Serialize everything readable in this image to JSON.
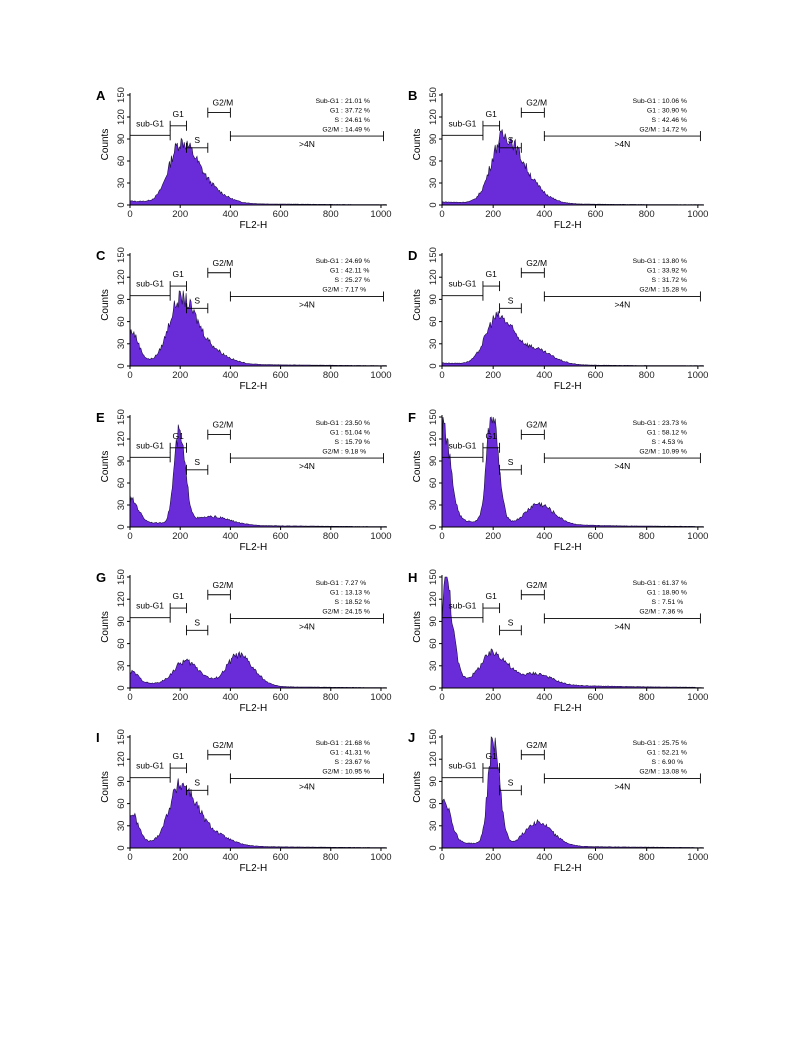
{
  "figure": {
    "domain_axes": {
      "xlabel": "FL2-H",
      "ylabel": "Counts"
    }
  },
  "chart_data": [
    {
      "panel": "A",
      "type": "area",
      "xlabel": "FL2-H",
      "ylabel": "Counts",
      "xlim": [
        0,
        1024
      ],
      "ylim": [
        0,
        150
      ],
      "xticks": [
        0,
        200,
        400,
        600,
        800,
        1000
      ],
      "yticks": [
        0,
        30,
        60,
        90,
        120,
        150
      ],
      "peaks": [
        {
          "x": 200,
          "y": 75
        }
      ],
      "trough_y": 7,
      "shoulder": [
        {
          "x": 300,
          "y": 22
        }
      ],
      "stats": [
        {
          "label": "Sub-G1",
          "value": "21.01 %"
        },
        {
          "label": "G1",
          "value": "37.72 %"
        },
        {
          "label": "S",
          "value": "24.61 %"
        },
        {
          "label": "G2/M",
          "value": "14.49 %"
        }
      ]
    },
    {
      "panel": "B",
      "type": "area",
      "xlabel": "FL2-H",
      "ylabel": "Counts",
      "xlim": [
        0,
        1024
      ],
      "ylim": [
        0,
        150
      ],
      "xticks": [
        0,
        200,
        400,
        600,
        800,
        1000
      ],
      "yticks": [
        0,
        30,
        60,
        90,
        120,
        150
      ],
      "peaks": [
        {
          "x": 235,
          "y": 78
        }
      ],
      "trough_y": 5,
      "shoulder": [
        {
          "x": 320,
          "y": 30
        }
      ],
      "stats": [
        {
          "label": "Sub-G1",
          "value": "10.06 %"
        },
        {
          "label": "G1",
          "value": "30.90 %"
        },
        {
          "label": "S",
          "value": "42.46 %"
        },
        {
          "label": "G2/M",
          "value": "14.72 %"
        }
      ]
    },
    {
      "panel": "C",
      "type": "area",
      "xlabel": "FL2-H",
      "ylabel": "Counts",
      "xlim": [
        0,
        1024
      ],
      "ylim": [
        0,
        150
      ],
      "xticks": [
        0,
        200,
        400,
        600,
        800,
        1000
      ],
      "yticks": [
        0,
        30,
        60,
        90,
        120,
        150
      ],
      "peaks": [
        {
          "x": 5,
          "y": 40
        },
        {
          "x": 200,
          "y": 82
        }
      ],
      "trough_y": 10,
      "shoulder": [
        {
          "x": 310,
          "y": 20
        }
      ],
      "stats": [
        {
          "label": "Sub-G1",
          "value": "24.69 %"
        },
        {
          "label": "G1",
          "value": "42.11 %"
        },
        {
          "label": "S",
          "value": "25.27 %"
        },
        {
          "label": "G2/M",
          "value": "7.17 %"
        }
      ]
    },
    {
      "panel": "D",
      "type": "area",
      "xlabel": "FL2-H",
      "ylabel": "Counts",
      "xlim": [
        0,
        1024
      ],
      "ylim": [
        0,
        150
      ],
      "xticks": [
        0,
        200,
        400,
        600,
        800,
        1000
      ],
      "yticks": [
        0,
        30,
        60,
        90,
        120,
        150
      ],
      "peaks": [
        {
          "x": 215,
          "y": 62
        }
      ],
      "trough_y": 5,
      "shoulder": [
        {
          "x": 360,
          "y": 22
        }
      ],
      "stats": [
        {
          "label": "Sub-G1",
          "value": "13.80 %"
        },
        {
          "label": "G1",
          "value": "33.92 %"
        },
        {
          "label": "S",
          "value": "31.72 %"
        },
        {
          "label": "G2/M",
          "value": "15.28 %"
        }
      ]
    },
    {
      "panel": "E",
      "type": "area",
      "xlabel": "FL2-H",
      "ylabel": "Counts",
      "xlim": [
        0,
        1024
      ],
      "ylim": [
        0,
        150
      ],
      "xticks": [
        0,
        200,
        400,
        600,
        800,
        1000
      ],
      "yticks": [
        0,
        30,
        60,
        90,
        120,
        150
      ],
      "peaks": [
        {
          "x": 5,
          "y": 30
        },
        {
          "x": 195,
          "y": 120
        }
      ],
      "trough_y": 10,
      "shoulder": [
        {
          "x": 330,
          "y": 12
        }
      ],
      "stats": [
        {
          "label": "Sub-G1",
          "value": "23.50 %"
        },
        {
          "label": "G1",
          "value": "51.04 %"
        },
        {
          "label": "S",
          "value": "15.79 %"
        },
        {
          "label": "G2/M",
          "value": "9.18 %"
        }
      ]
    },
    {
      "panel": "F",
      "type": "area",
      "xlabel": "FL2-H",
      "ylabel": "Counts",
      "xlim": [
        0,
        1024
      ],
      "ylim": [
        0,
        150
      ],
      "xticks": [
        0,
        200,
        400,
        600,
        800,
        1000
      ],
      "yticks": [
        0,
        30,
        60,
        90,
        120,
        150
      ],
      "peaks": [
        {
          "x": 5,
          "y": 125
        },
        {
          "x": 195,
          "y": 150
        },
        {
          "x": 375,
          "y": 28
        }
      ],
      "trough_y": 15,
      "stats": [
        {
          "label": "Sub-G1",
          "value": "23.73 %"
        },
        {
          "label": "G1",
          "value": "58.12 %"
        },
        {
          "label": "S",
          "value": "4.53 %"
        },
        {
          "label": "G2/M",
          "value": "10.99 %"
        }
      ]
    },
    {
      "panel": "G",
      "type": "area",
      "xlabel": "FL2-H",
      "ylabel": "Counts",
      "xlim": [
        0,
        1024
      ],
      "ylim": [
        0,
        150
      ],
      "xticks": [
        0,
        200,
        400,
        600,
        800,
        1000
      ],
      "yticks": [
        0,
        30,
        60,
        90,
        120,
        150
      ],
      "peaks": [
        {
          "x": 5,
          "y": 15
        },
        {
          "x": 220,
          "y": 32
        },
        {
          "x": 430,
          "y": 42
        }
      ],
      "trough_y": 10,
      "stats": [
        {
          "label": "Sub-G1",
          "value": "7.27 %"
        },
        {
          "label": "G1",
          "value": "13.13 %"
        },
        {
          "label": "S",
          "value": "18.52 %"
        },
        {
          "label": "G2/M",
          "value": "24.15 %"
        }
      ]
    },
    {
      "panel": "H",
      "type": "area",
      "xlabel": "FL2-H",
      "ylabel": "Counts",
      "xlim": [
        0,
        1024
      ],
      "ylim": [
        0,
        150
      ],
      "xticks": [
        0,
        200,
        400,
        600,
        800,
        1000
      ],
      "yticks": [
        0,
        30,
        60,
        90,
        120,
        150
      ],
      "peaks": [
        {
          "x": 10,
          "y": 148
        },
        {
          "x": 200,
          "y": 40
        },
        {
          "x": 370,
          "y": 14
        }
      ],
      "trough_y": 20,
      "stats": [
        {
          "label": "Sub-G1",
          "value": "61.37 %"
        },
        {
          "label": "G1",
          "value": "18.90 %"
        },
        {
          "label": "S",
          "value": "7.51 %"
        },
        {
          "label": "G2/M",
          "value": "7.36 %"
        }
      ]
    },
    {
      "panel": "I",
      "type": "area",
      "xlabel": "FL2-H",
      "ylabel": "Counts",
      "xlim": [
        0,
        1024
      ],
      "ylim": [
        0,
        150
      ],
      "xticks": [
        0,
        200,
        400,
        600,
        800,
        1000
      ],
      "yticks": [
        0,
        30,
        60,
        90,
        120,
        150
      ],
      "peaks": [
        {
          "x": 5,
          "y": 40
        },
        {
          "x": 200,
          "y": 78
        }
      ],
      "trough_y": 10,
      "shoulder": [
        {
          "x": 320,
          "y": 18
        }
      ],
      "stats": [
        {
          "label": "Sub-G1",
          "value": "21.68 %"
        },
        {
          "label": "G1",
          "value": "41.31 %"
        },
        {
          "label": "S",
          "value": "23.67 %"
        },
        {
          "label": "G2/M",
          "value": "10.95 %"
        }
      ]
    },
    {
      "panel": "J",
      "type": "area",
      "xlabel": "FL2-H",
      "ylabel": "Counts",
      "xlim": [
        0,
        1024
      ],
      "ylim": [
        0,
        150
      ],
      "xticks": [
        0,
        200,
        400,
        600,
        800,
        1000
      ],
      "yticks": [
        0,
        30,
        60,
        90,
        120,
        150
      ],
      "peaks": [
        {
          "x": 5,
          "y": 60
        },
        {
          "x": 200,
          "y": 142
        },
        {
          "x": 370,
          "y": 32
        }
      ],
      "trough_y": 12,
      "stats": [
        {
          "label": "Sub-G1",
          "value": "25.75 %"
        },
        {
          "label": "G1",
          "value": "52.21 %"
        },
        {
          "label": "S",
          "value": "6.90 %"
        },
        {
          "label": "G2/M",
          "value": "13.08 %"
        }
      ]
    }
  ],
  "gates": {
    "sub_g1": "sub-G1",
    "g1": "G1",
    "s": "S",
    "g2m": "G2/M",
    "gt4n": ">4N"
  },
  "style": {
    "fill": "#6a2bd9",
    "stroke": "#1a0d40"
  }
}
